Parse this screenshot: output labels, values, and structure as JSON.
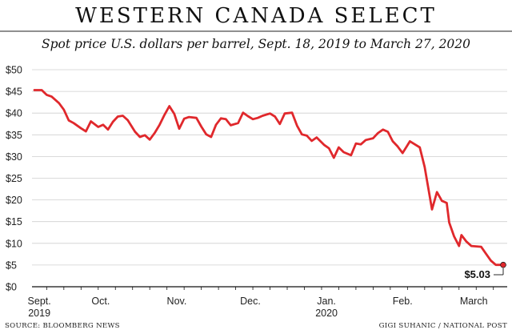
{
  "chart_data": {
    "type": "line",
    "title": "WESTERN CANADA SELECT",
    "subtitle": "Spot price U.S. dollars per barrel, Sept. 18, 2019 to March 27, 2020",
    "xlabel": "",
    "ylabel": "",
    "ylim": [
      0,
      50
    ],
    "yticks": [
      "$0",
      "$5",
      "$10",
      "$15",
      "$20",
      "$25",
      "$30",
      "$35",
      "$40",
      "$45",
      "$50"
    ],
    "xlim": [
      "2019-09-18",
      "2020-03-27"
    ],
    "xticks": [
      {
        "label": "Sept.",
        "sublabel": "2019",
        "date": "2019-09-20"
      },
      {
        "label": "Oct.",
        "date": "2019-10-15"
      },
      {
        "label": "Nov.",
        "date": "2019-11-15"
      },
      {
        "label": "Dec.",
        "date": "2019-12-15"
      },
      {
        "label": "Jan.",
        "sublabel": "2020",
        "date": "2020-01-15"
      },
      {
        "label": "Feb.",
        "date": "2020-02-15"
      },
      {
        "label": "March",
        "date": "2020-03-15"
      }
    ],
    "grid": true,
    "legend": "none",
    "series_color": "#e0282c",
    "x": [
      "2019-09-18",
      "2019-09-21",
      "2019-09-23",
      "2019-09-25",
      "2019-09-28",
      "2019-09-30",
      "2019-10-02",
      "2019-10-04",
      "2019-10-07",
      "2019-10-09",
      "2019-10-11",
      "2019-10-14",
      "2019-10-16",
      "2019-10-18",
      "2019-10-20",
      "2019-10-22",
      "2019-10-24",
      "2019-10-26",
      "2019-10-29",
      "2019-10-31",
      "2019-11-02",
      "2019-11-04",
      "2019-11-06",
      "2019-11-08",
      "2019-11-10",
      "2019-11-12",
      "2019-11-14",
      "2019-11-16",
      "2019-11-18",
      "2019-11-20",
      "2019-11-23",
      "2019-11-25",
      "2019-11-27",
      "2019-11-29",
      "2019-12-01",
      "2019-12-03",
      "2019-12-05",
      "2019-12-07",
      "2019-12-10",
      "2019-12-12",
      "2019-12-14",
      "2019-12-16",
      "2019-12-18",
      "2019-12-20",
      "2019-12-23",
      "2019-12-25",
      "2019-12-27",
      "2019-12-29",
      "2020-01-01",
      "2020-01-03",
      "2020-01-05",
      "2020-01-07",
      "2020-01-09",
      "2020-01-11",
      "2020-01-14",
      "2020-01-16",
      "2020-01-18",
      "2020-01-20",
      "2020-01-22",
      "2020-01-25",
      "2020-01-27",
      "2020-01-29",
      "2020-01-31",
      "2020-02-03",
      "2020-02-05",
      "2020-02-07",
      "2020-02-09",
      "2020-02-11",
      "2020-02-13",
      "2020-02-15",
      "2020-02-18",
      "2020-02-20",
      "2020-02-22",
      "2020-02-24",
      "2020-02-27",
      "2020-02-29",
      "2020-03-02",
      "2020-03-04",
      "2020-03-05",
      "2020-03-07",
      "2020-03-09",
      "2020-03-10",
      "2020-03-12",
      "2020-03-14",
      "2020-03-16",
      "2020-03-18",
      "2020-03-20",
      "2020-03-22",
      "2020-03-24",
      "2020-03-25",
      "2020-03-27"
    ],
    "values": [
      45.3,
      45.3,
      44.2,
      43.8,
      42.3,
      40.8,
      38.3,
      37.7,
      36.5,
      35.8,
      38.1,
      36.8,
      37.3,
      36.2,
      38.0,
      39.2,
      39.4,
      38.4,
      35.7,
      34.5,
      34.9,
      33.9,
      35.4,
      37.3,
      39.6,
      41.6,
      39.8,
      36.4,
      38.7,
      39.1,
      38.9,
      36.9,
      35.1,
      34.5,
      37.3,
      38.8,
      38.6,
      37.2,
      37.7,
      40.1,
      39.3,
      38.6,
      38.9,
      39.4,
      39.9,
      39.2,
      37.5,
      39.9,
      40.1,
      37.1,
      35.1,
      34.8,
      33.6,
      34.4,
      32.7,
      31.9,
      29.7,
      32.1,
      31.0,
      30.3,
      33.0,
      32.8,
      33.8,
      34.2,
      35.4,
      36.2,
      35.7,
      33.5,
      32.3,
      30.8,
      33.5,
      32.8,
      32.1,
      27.6,
      17.8,
      21.8,
      19.8,
      19.3,
      14.8,
      11.6,
      9.4,
      11.9,
      10.4,
      9.4,
      9.3,
      9.2,
      7.6,
      6.0,
      5.03,
      5.03,
      5.03
    ],
    "annotations": [
      {
        "text": "$5.03",
        "date": "2020-03-27",
        "value": 5.03
      }
    ]
  },
  "credits": {
    "source": "SOURCE: BLOOMBERG NEWS",
    "author": "GIGI SUHANIC / NATIONAL POST"
  }
}
